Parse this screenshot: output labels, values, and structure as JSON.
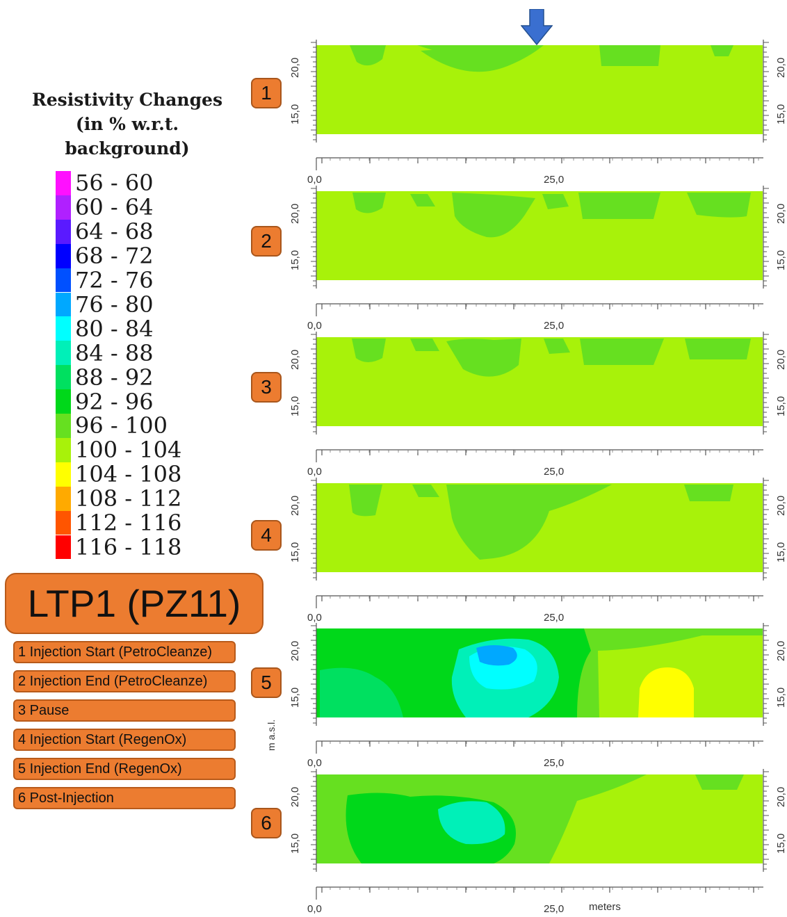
{
  "legend": {
    "title_lines": [
      "Resistivity Changes",
      "(in % w.r.t.",
      "background)"
    ],
    "items": [
      {
        "label": "56 - 60",
        "color": "#ff10ff"
      },
      {
        "label": "60 - 64",
        "color": "#b020ff"
      },
      {
        "label": "64 - 68",
        "color": "#5a1aff"
      },
      {
        "label": "68 - 72",
        "color": "#0000ff"
      },
      {
        "label": "72 - 76",
        "color": "#0050ff"
      },
      {
        "label": "76 - 80",
        "color": "#00a8ff"
      },
      {
        "label": "80 - 84",
        "color": "#00ffff"
      },
      {
        "label": "84 - 88",
        "color": "#00f0b8"
      },
      {
        "label": "88 - 92",
        "color": "#00e060"
      },
      {
        "label": "92 - 96",
        "color": "#00d81a"
      },
      {
        "label": "96 - 100",
        "color": "#66e020"
      },
      {
        "label": "100 - 104",
        "color": "#a8f20a"
      },
      {
        "label": "104 - 108",
        "color": "#ffff00"
      },
      {
        "label": "108 - 112",
        "color": "#ffaa00"
      },
      {
        "label": "112 - 116",
        "color": "#ff5500"
      },
      {
        "label": "116 - 118",
        "color": "#ff0000"
      }
    ]
  },
  "title": "LTP1 (PZ11)",
  "steps": [
    "1 Injection Start (PetroCleanze)",
    "2 Injection End (PetroCleanze)",
    "3 Pause",
    "4 Injection Start (RegenOx)",
    "5 Injection End (RegenOx)",
    "6 Post-Injection"
  ],
  "panels": [
    {
      "number": "1"
    },
    {
      "number": "2"
    },
    {
      "number": "3"
    },
    {
      "number": "4"
    },
    {
      "number": "5"
    },
    {
      "number": "6"
    }
  ],
  "axes": {
    "y_ticks": [
      "20,0",
      "15,0"
    ],
    "x_ticks": [
      "0,0",
      "25,0"
    ],
    "x_unit": "meters",
    "y_unit": "m a.s.l."
  },
  "colors": {
    "background_green": "#a8f20a",
    "medium_green": "#66e020",
    "green": "#00d81a",
    "green_88": "#00e060",
    "teal": "#00f0b8",
    "cyan": "#00ffff",
    "blue": "#00a8ff",
    "yellow": "#ffff00",
    "accent_orange": "#ec7c30",
    "arrow_blue": "#3a6fd0"
  }
}
